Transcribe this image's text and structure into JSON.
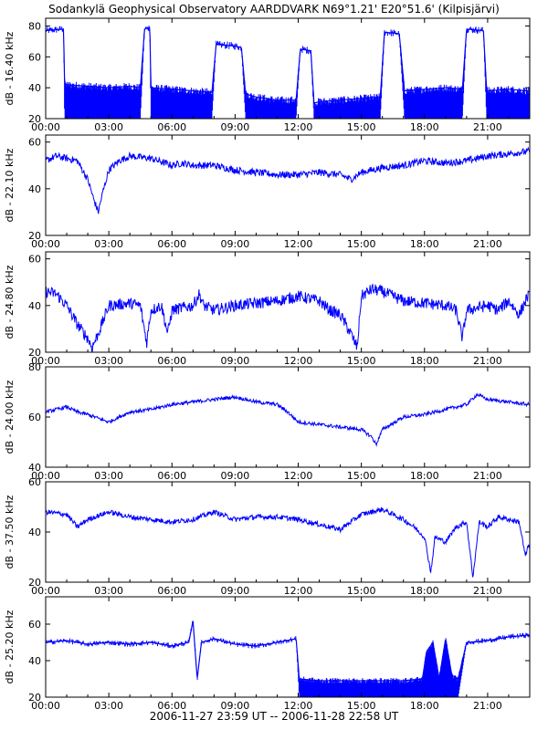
{
  "title": "Sodankylä Geophysical Observatory AARDDVARK N69°1.21' E20°51.6' (Kilpisjärvi)",
  "footer": "2006-11-27 23:59 UT -- 2006-11-28 22:58 UT",
  "colors": {
    "trace": "#0000ff",
    "axis": "#000000",
    "background": "#ffffff"
  },
  "chart_data": [
    {
      "type": "line",
      "ylabel": "dB - 16.40 kHz",
      "ylim": [
        20,
        85
      ],
      "yticks": [
        20,
        40,
        60,
        80
      ],
      "xlim": [
        0,
        23.0
      ],
      "xticks": [
        0,
        3,
        6,
        9,
        12,
        15,
        18,
        21
      ],
      "xticklabels": [
        "00:00",
        "03:00",
        "06:00",
        "09:00",
        "12:00",
        "15:00",
        "18:00",
        "21:00"
      ],
      "grid": false,
      "style": "band",
      "x": [
        0,
        0.85,
        0.9,
        1,
        2,
        3,
        4,
        4.5,
        4.7,
        4.95,
        5,
        6,
        7,
        7.9,
        8.1,
        9,
        9.3,
        9.5,
        10,
        11,
        11.9,
        12.1,
        12.6,
        12.75,
        13,
        14,
        15,
        15.9,
        16.1,
        16.8,
        17.05,
        18,
        19,
        19.8,
        20,
        20.8,
        20.95,
        21,
        22,
        22.9
      ],
      "y": [
        77,
        78,
        42,
        42,
        41,
        40,
        41,
        40,
        78,
        79,
        40,
        39,
        38,
        37,
        68,
        67,
        66,
        36,
        34,
        32,
        32,
        65,
        64,
        30,
        31,
        32,
        33,
        34,
        76,
        75,
        38,
        39,
        40,
        39,
        78,
        77,
        39,
        38,
        39,
        38
      ],
      "ylow": [
        77,
        78,
        20,
        20,
        20,
        20,
        20,
        20,
        78,
        79,
        20,
        20,
        20,
        20,
        68,
        67,
        66,
        20,
        20,
        20,
        20,
        65,
        64,
        20,
        20,
        20,
        20,
        20,
        76,
        75,
        20,
        20,
        20,
        20,
        78,
        77,
        20,
        20,
        20,
        20
      ],
      "noise": 2.5
    },
    {
      "type": "line",
      "ylabel": "dB - 22.10 kHz",
      "ylim": [
        20,
        63
      ],
      "yticks": [
        20,
        40,
        60
      ],
      "xlim": [
        0,
        23.0
      ],
      "xticks": [
        0,
        3,
        6,
        9,
        12,
        15,
        18,
        21
      ],
      "xticklabels": [
        "00:00",
        "03:00",
        "06:00",
        "09:00",
        "12:00",
        "15:00",
        "18:00",
        "21:00"
      ],
      "grid": false,
      "style": "line",
      "x": [
        0,
        0.5,
        1,
        1.5,
        2,
        2.3,
        2.5,
        2.7,
        3,
        3.5,
        4,
        5,
        6,
        6.5,
        7,
        8,
        9,
        10,
        11,
        12,
        13,
        14,
        14.5,
        15,
        16,
        17,
        18,
        19,
        20,
        21,
        22,
        22.9
      ],
      "y": [
        52,
        54,
        53,
        52,
        44,
        35,
        30,
        38,
        48,
        52,
        54,
        53,
        50,
        51,
        50,
        50,
        48,
        47,
        46,
        46,
        47,
        46,
        44,
        47,
        49,
        50,
        52,
        51,
        52,
        54,
        55,
        56
      ],
      "noise": 1.5
    },
    {
      "type": "line",
      "ylabel": "dB - 24.80 kHz",
      "ylim": [
        20,
        63
      ],
      "yticks": [
        20,
        40,
        60
      ],
      "xlim": [
        0,
        23.0
      ],
      "xticks": [
        0,
        3,
        6,
        9,
        12,
        15,
        18,
        21
      ],
      "xticklabels": [
        "00:00",
        "03:00",
        "06:00",
        "09:00",
        "12:00",
        "15:00",
        "18:00",
        "21:00"
      ],
      "grid": false,
      "style": "line",
      "x": [
        0,
        0.5,
        1,
        1.5,
        2,
        2.2,
        2.5,
        3,
        4,
        4.5,
        4.8,
        5,
        5.5,
        5.8,
        6,
        7,
        7.3,
        7.5,
        8,
        9,
        10,
        11,
        12,
        13,
        13.5,
        14,
        14.5,
        14.8,
        15,
        15.5,
        16,
        17,
        18,
        19,
        19.5,
        19.8,
        20,
        21,
        21.5,
        22,
        22.5,
        22.9
      ],
      "y": [
        46,
        45,
        40,
        32,
        26,
        22,
        28,
        40,
        41,
        40,
        24,
        38,
        40,
        28,
        38,
        40,
        45,
        40,
        38,
        40,
        41,
        42,
        44,
        42,
        38,
        36,
        28,
        22,
        44,
        47,
        46,
        42,
        41,
        40,
        38,
        26,
        38,
        40,
        38,
        42,
        36,
        44
      ],
      "noise": 2.5
    },
    {
      "type": "line",
      "ylabel": "dB - 24.00 kHz",
      "ylim": [
        40,
        80
      ],
      "yticks": [
        40,
        60,
        80
      ],
      "xlim": [
        0,
        23.0
      ],
      "xticks": [
        0,
        3,
        6,
        9,
        12,
        15,
        18,
        21
      ],
      "xticklabels": [
        "00:00",
        "03:00",
        "06:00",
        "09:00",
        "12:00",
        "15:00",
        "18:00",
        "21:00"
      ],
      "grid": false,
      "style": "line",
      "x": [
        0,
        0.5,
        1,
        1.5,
        2,
        3,
        4,
        5,
        6,
        7,
        8,
        9,
        10,
        11,
        11.5,
        12,
        13,
        14,
        15,
        15.5,
        15.7,
        16,
        17,
        18,
        19,
        20,
        20.5,
        21,
        22,
        22.9
      ],
      "y": [
        62,
        63,
        64,
        62,
        61,
        58,
        62,
        63,
        65,
        66,
        67,
        68,
        66,
        65,
        62,
        58,
        57,
        56,
        55,
        52,
        49,
        55,
        60,
        61,
        63,
        65,
        69,
        67,
        66,
        65
      ],
      "noise": 0.7
    },
    {
      "type": "line",
      "ylabel": "dB - 37.50 kHz",
      "ylim": [
        20,
        60
      ],
      "yticks": [
        20,
        40,
        60
      ],
      "xlim": [
        0,
        23.0
      ],
      "xticks": [
        0,
        3,
        6,
        9,
        12,
        15,
        18,
        21
      ],
      "xticklabels": [
        "00:00",
        "03:00",
        "06:00",
        "09:00",
        "12:00",
        "15:00",
        "18:00",
        "21:00"
      ],
      "grid": false,
      "style": "line",
      "x": [
        0,
        1,
        1.5,
        2,
        3,
        4,
        5,
        6,
        7,
        8,
        9,
        10,
        11,
        12,
        13,
        14,
        15,
        16,
        17,
        17.5,
        18,
        18.3,
        18.5,
        19,
        19.5,
        20,
        20.3,
        20.6,
        21,
        21.5,
        22,
        22.5,
        22.8,
        22.9
      ],
      "y": [
        48,
        47,
        42,
        45,
        48,
        46,
        45,
        44,
        45,
        48,
        45,
        46,
        46,
        45,
        43,
        41,
        47,
        49,
        45,
        42,
        38,
        24,
        38,
        36,
        42,
        44,
        22,
        44,
        42,
        46,
        45,
        44,
        30,
        34
      ],
      "noise": 1.0
    },
    {
      "type": "line",
      "ylabel": "dB - 25.20 kHz",
      "ylim": [
        20,
        75
      ],
      "yticks": [
        20,
        40,
        60
      ],
      "xlim": [
        0,
        23.0
      ],
      "xticks": [
        0,
        3,
        6,
        9,
        12,
        15,
        18,
        21
      ],
      "xticklabels": [
        "00:00",
        "03:00",
        "06:00",
        "09:00",
        "12:00",
        "15:00",
        "18:00",
        "21:00"
      ],
      "grid": false,
      "style": "band",
      "x": [
        0,
        1,
        2,
        3,
        4,
        5,
        6,
        6.8,
        7,
        7.2,
        7.4,
        8,
        9,
        10,
        11,
        11.9,
        12.05,
        13,
        14,
        15,
        16,
        17,
        17.9,
        18.1,
        18.4,
        18.7,
        19,
        19.3,
        19.6,
        20,
        21,
        22,
        22.9
      ],
      "y": [
        50,
        51,
        49,
        50,
        49,
        50,
        48,
        50,
        62,
        30,
        50,
        52,
        49,
        48,
        50,
        52,
        30,
        29,
        29,
        29,
        29,
        29,
        30,
        45,
        50,
        30,
        52,
        32,
        30,
        50,
        51,
        53,
        54
      ],
      "ylow": [
        50,
        51,
        49,
        50,
        49,
        50,
        48,
        50,
        62,
        30,
        50,
        52,
        49,
        48,
        50,
        52,
        20,
        20,
        20,
        20,
        20,
        20,
        20,
        20,
        20,
        20,
        20,
        20,
        20,
        50,
        51,
        53,
        54
      ],
      "noise": 1.5
    }
  ]
}
